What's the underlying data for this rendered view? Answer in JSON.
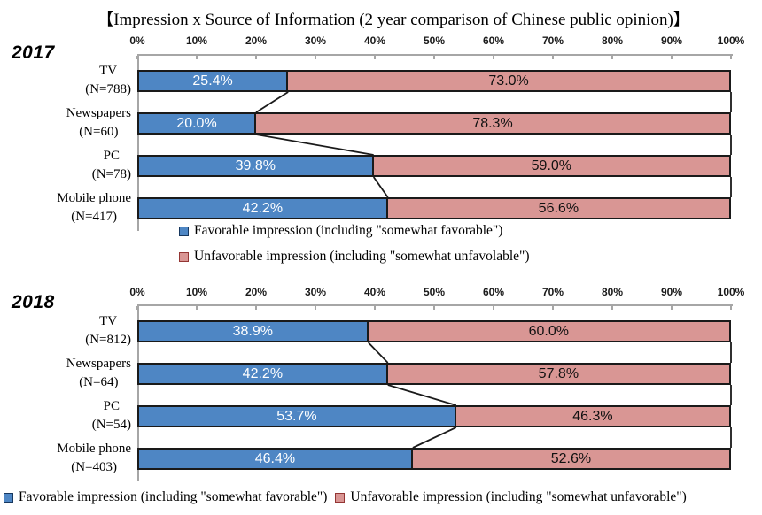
{
  "title": "【Impression x Source of Information (2 year comparison of Chinese public opinion)】",
  "colors": {
    "favorable": "#4E86C4",
    "unfavorable": "#D99694",
    "favorable_border": "#17375E",
    "unfavorable_border": "#943634",
    "bar_border": "#1A1A1A",
    "axis": "#A6A6A6"
  },
  "legend_middle": {
    "items": [
      {
        "series": "favorable",
        "label": "Favorable impression (including \"somewhat favorable\")"
      },
      {
        "series": "unfavorable",
        "label": "Unfavorable impression (including \"somewhat unfavolable\")"
      }
    ]
  },
  "legend_bottom": {
    "items": [
      {
        "series": "favorable",
        "label": "Favorable impression (including \"somewhat favorable\")"
      },
      {
        "series": "unfavorable",
        "label": "Unfavorable impression (including \"somewhat unfavorable\")"
      }
    ]
  },
  "chart_data": [
    {
      "type": "bar",
      "stacked": true,
      "orientation": "horizontal",
      "year": "2017",
      "xlim": [
        0,
        100
      ],
      "x_ticks": [
        "0%",
        "10%",
        "20%",
        "30%",
        "40%",
        "50%",
        "60%",
        "70%",
        "80%",
        "90%",
        "100%"
      ],
      "categories": [
        "TV",
        "Newspapers",
        "PC",
        "Mobile phone"
      ],
      "n_labels": [
        "(N=788)",
        "(N=60)",
        "(N=78)",
        "(N=417)"
      ],
      "series": [
        {
          "name": "Favorable impression (including \"somewhat favorable\")",
          "values": [
            25.4,
            20.0,
            39.8,
            42.2
          ]
        },
        {
          "name": "Unfavorable impression (including \"somewhat unfavolable\")",
          "values": [
            73.0,
            78.3,
            59.0,
            56.6
          ]
        }
      ]
    },
    {
      "type": "bar",
      "stacked": true,
      "orientation": "horizontal",
      "year": "2018",
      "xlim": [
        0,
        100
      ],
      "x_ticks": [
        "0%",
        "10%",
        "20%",
        "30%",
        "40%",
        "50%",
        "60%",
        "70%",
        "80%",
        "90%",
        "100%"
      ],
      "categories": [
        "TV",
        "Newspapers",
        "PC",
        "Mobile phone"
      ],
      "n_labels": [
        "(N=812)",
        "(N=64)",
        "(N=54)",
        "(N=403)"
      ],
      "series": [
        {
          "name": "Favorable impression (including \"somewhat favorable\")",
          "values": [
            38.9,
            42.2,
            53.7,
            46.4
          ]
        },
        {
          "name": "Unfavorable impression (including \"somewhat unfavorable\")",
          "values": [
            60.0,
            57.8,
            46.3,
            52.6
          ]
        }
      ]
    }
  ]
}
